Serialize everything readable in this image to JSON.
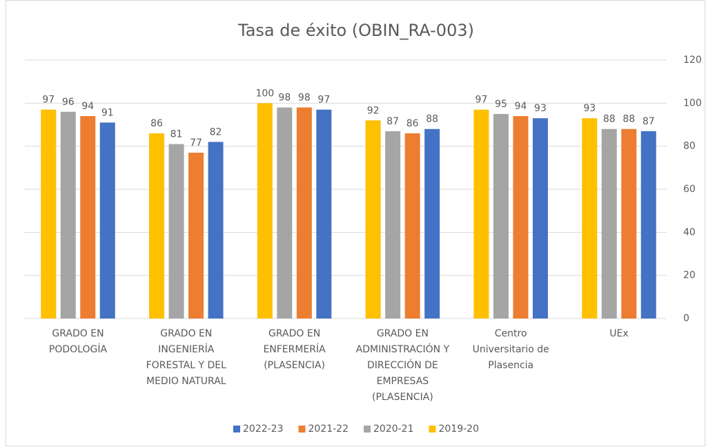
{
  "chart_data": {
    "type": "bar",
    "title": "Tasa de éxito (OBIN_RA-003)",
    "categories": [
      "GRADO EN PODOLOGÍA",
      "GRADO EN INGENIERÍA FORESTAL Y DEL MEDIO NATURAL",
      "GRADO EN ENFERMERÍA (PLASENCIA)",
      "GRADO EN ADMINISTRACIÓN Y DIRECCIÓN DE EMPRESAS (PLASENCIA)",
      "Centro Universitario de Plasencia",
      "UEx"
    ],
    "series": [
      {
        "name": "2022-23",
        "color": "#4472c4",
        "values": [
          91,
          82,
          97,
          88,
          93,
          87
        ]
      },
      {
        "name": "2021-22",
        "color": "#ed7d31",
        "values": [
          94,
          77,
          98,
          86,
          94,
          88
        ]
      },
      {
        "name": "2020-21",
        "color": "#a5a5a5",
        "values": [
          96,
          81,
          98,
          87,
          95,
          88
        ]
      },
      {
        "name": "2019-20",
        "color": "#ffc000",
        "values": [
          97,
          86,
          100,
          92,
          97,
          93
        ]
      }
    ],
    "ylim": [
      0,
      120
    ],
    "yticks": [
      0,
      20,
      40,
      60,
      80,
      100,
      120
    ],
    "grid": true,
    "y_axis_side": "right",
    "legend": "bottom"
  }
}
